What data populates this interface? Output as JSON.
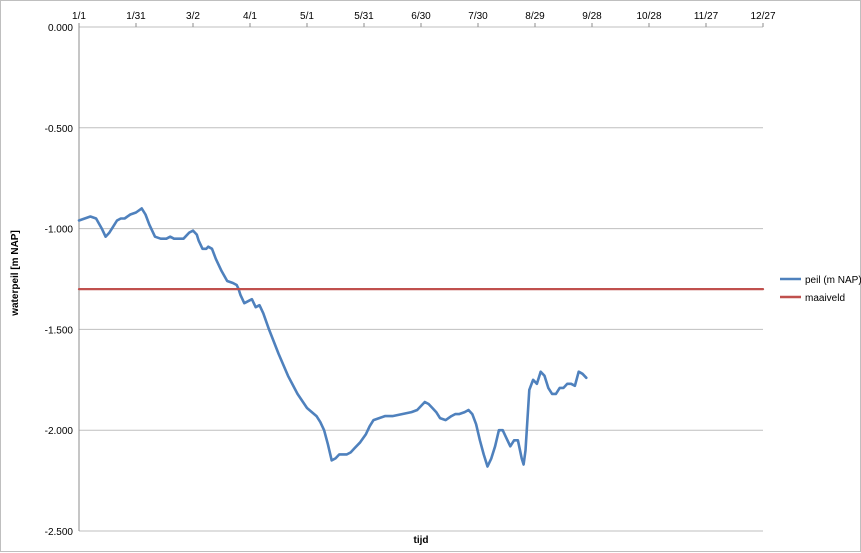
{
  "chart_data": {
    "type": "line",
    "xlabel": "tijd",
    "ylabel": "waterpeil [m NAP]",
    "x_tick_labels": [
      "1/1",
      "1/31",
      "3/2",
      "4/1",
      "5/1",
      "5/31",
      "6/30",
      "7/30",
      "8/29",
      "9/28",
      "10/28",
      "11/27",
      "12/27"
    ],
    "xlim": [
      0,
      360
    ],
    "y_tick_labels": [
      "0.000",
      "-0.500",
      "-1.000",
      "-1.500",
      "-2.000",
      "-2.500"
    ],
    "y_ticks": [
      0,
      -0.5,
      -1.0,
      -1.5,
      -2.0,
      -2.5
    ],
    "ylim": [
      -2.5,
      0
    ],
    "grid": true,
    "legend_position": "right",
    "series": [
      {
        "name": "peil (m NAP)",
        "color": "#4f81bd",
        "x": [
          0,
          3,
          6,
          9,
          12,
          14,
          16,
          18,
          20,
          22,
          24,
          27,
          30,
          33,
          35,
          37,
          40,
          43,
          46,
          48,
          50,
          52,
          55,
          58,
          60,
          62,
          63,
          65,
          67,
          68,
          70,
          72,
          75,
          78,
          81,
          83,
          84,
          85,
          87,
          89,
          91,
          93,
          95,
          97,
          100,
          105,
          110,
          115,
          120,
          125,
          127,
          129,
          131,
          133,
          135,
          137,
          139,
          141,
          143,
          145,
          148,
          151,
          153,
          155,
          158,
          161,
          165,
          170,
          175,
          178,
          180,
          182,
          184,
          186,
          188,
          190,
          193,
          196,
          198,
          200,
          203,
          205,
          207,
          209,
          211,
          213,
          215,
          217,
          219,
          221,
          223,
          225,
          227,
          229,
          231,
          233,
          234,
          235,
          237,
          239,
          241,
          243,
          245,
          247,
          249,
          251,
          253,
          255,
          257,
          259,
          261,
          263,
          265,
          267
        ],
        "y": [
          -0.96,
          -0.95,
          -0.94,
          -0.95,
          -1.0,
          -1.04,
          -1.02,
          -0.99,
          -0.96,
          -0.95,
          -0.95,
          -0.93,
          -0.92,
          -0.9,
          -0.93,
          -0.98,
          -1.04,
          -1.05,
          -1.05,
          -1.04,
          -1.05,
          -1.05,
          -1.05,
          -1.02,
          -1.01,
          -1.03,
          -1.06,
          -1.1,
          -1.1,
          -1.09,
          -1.1,
          -1.15,
          -1.21,
          -1.26,
          -1.27,
          -1.28,
          -1.3,
          -1.33,
          -1.37,
          -1.36,
          -1.35,
          -1.39,
          -1.38,
          -1.42,
          -1.5,
          -1.62,
          -1.73,
          -1.82,
          -1.89,
          -1.93,
          -1.96,
          -2.0,
          -2.07,
          -2.15,
          -2.14,
          -2.12,
          -2.12,
          -2.12,
          -2.11,
          -2.09,
          -2.06,
          -2.02,
          -1.98,
          -1.95,
          -1.94,
          -1.93,
          -1.93,
          -1.92,
          -1.91,
          -1.9,
          -1.88,
          -1.86,
          -1.87,
          -1.89,
          -1.91,
          -1.94,
          -1.95,
          -1.93,
          -1.92,
          -1.92,
          -1.91,
          -1.9,
          -1.92,
          -1.97,
          -2.05,
          -2.12,
          -2.18,
          -2.14,
          -2.08,
          -2.0,
          -2.0,
          -2.04,
          -2.08,
          -2.05,
          -2.05,
          -2.14,
          -2.17,
          -2.1,
          -1.8,
          -1.75,
          -1.77,
          -1.71,
          -1.73,
          -1.79,
          -1.82,
          -1.82,
          -1.79,
          -1.79,
          -1.77,
          -1.77,
          -1.78,
          -1.71,
          -1.72,
          -1.74
        ]
      },
      {
        "name": "maaiveld",
        "color": "#c0504d",
        "x": [
          0,
          360
        ],
        "y": [
          -1.3,
          -1.3
        ]
      }
    ]
  }
}
